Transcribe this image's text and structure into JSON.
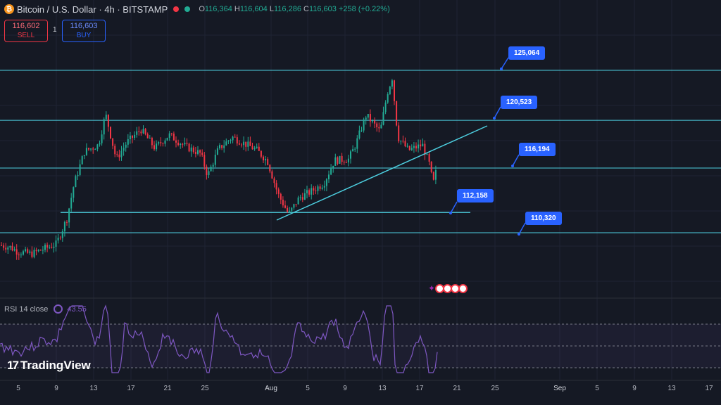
{
  "header": {
    "symbol_title": "Bitcoin / U.S. Dollar · 4h · BITSTAMP",
    "open_label": "O",
    "open": "116,364",
    "high_label": "H",
    "high": "116,604",
    "low_label": "L",
    "low": "116,286",
    "close_label": "C",
    "close": "116,603",
    "change": "+258 (+0.22%)"
  },
  "trade": {
    "sell_price": "116,602",
    "sell_label": "SELL",
    "spread": "1",
    "buy_price": "116,603",
    "buy_label": "BUY"
  },
  "levels": {
    "l1": "125,064",
    "l2": "120,523",
    "l3": "116,194",
    "l4": "112,158",
    "l5": "110,320"
  },
  "rsi": {
    "label": "RSI 14 close",
    "value": "43.55"
  },
  "logo": "TradingView",
  "xaxis": [
    "5",
    "9",
    "13",
    "17",
    "21",
    "25",
    "Aug",
    "5",
    "9",
    "13",
    "17",
    "21",
    "25",
    "Sep",
    "5",
    "9",
    "13",
    "17"
  ],
  "colors": {
    "background": "#151924",
    "up": "#22ab94",
    "down": "#f23645",
    "level_line": "#4dd0e1",
    "callout": "#2962ff",
    "rsi": "#7e57c2"
  },
  "chart_data": {
    "type": "candlestick",
    "timeframe": "4h",
    "horizontal_levels": [
      125064,
      120523,
      116194,
      112158,
      110320
    ],
    "approx_close_path": [
      [
        0,
        109200
      ],
      [
        15,
        109000
      ],
      [
        25,
        108600
      ],
      [
        45,
        108400
      ],
      [
        60,
        108800
      ],
      [
        80,
        109300
      ],
      [
        95,
        111600
      ],
      [
        105,
        114700
      ],
      [
        120,
        117700
      ],
      [
        140,
        118300
      ],
      [
        150,
        121100
      ],
      [
        165,
        117000
      ],
      [
        180,
        118500
      ],
      [
        200,
        119700
      ],
      [
        220,
        118000
      ],
      [
        240,
        119200
      ],
      [
        265,
        118100
      ],
      [
        285,
        117500
      ],
      [
        295,
        115500
      ],
      [
        310,
        117900
      ],
      [
        330,
        119000
      ],
      [
        345,
        118500
      ],
      [
        365,
        117800
      ],
      [
        380,
        116800
      ],
      [
        395,
        113800
      ],
      [
        410,
        112000
      ],
      [
        425,
        113500
      ],
      [
        440,
        114000
      ],
      [
        460,
        114800
      ],
      [
        475,
        116900
      ],
      [
        495,
        117000
      ],
      [
        505,
        118300
      ],
      [
        520,
        121000
      ],
      [
        540,
        119500
      ],
      [
        550,
        123000
      ],
      [
        557,
        124400
      ],
      [
        565,
        119000
      ],
      [
        580,
        117800
      ],
      [
        600,
        118300
      ],
      [
        610,
        116500
      ],
      [
        615,
        114700
      ],
      [
        622,
        116600
      ]
    ],
    "rsi_value": 43.55
  }
}
